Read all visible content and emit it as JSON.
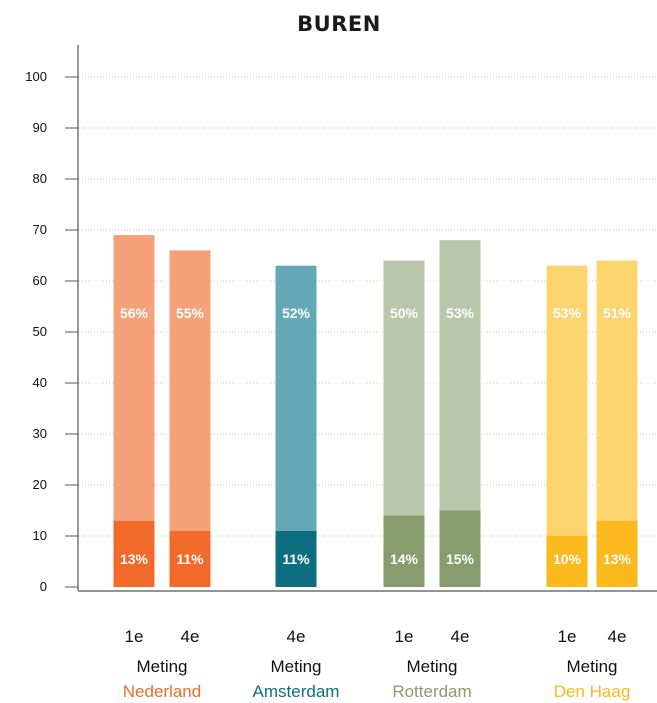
{
  "chart_data": {
    "type": "bar",
    "title": "BUREN",
    "ylim": [
      0,
      100
    ],
    "yticks": [
      0,
      10,
      20,
      30,
      40,
      50,
      60,
      70,
      80,
      90,
      100
    ],
    "grid": true,
    "group_caption": "Meting",
    "groups": [
      {
        "name": "Nederland",
        "color": "#f26a2a",
        "light_color": "#f4a17a",
        "bars": [
          {
            "measurement": "1e",
            "bottom_value": 13,
            "top_value": 56,
            "bottom_label": "13%",
            "top_label": "56%"
          },
          {
            "measurement": "4e",
            "bottom_value": 11,
            "top_value": 55,
            "bottom_label": "11%",
            "top_label": "55%"
          }
        ]
      },
      {
        "name": "Amsterdam",
        "color": "#0d6e80",
        "light_color": "#64a8b6",
        "bars": [
          {
            "measurement": "4e",
            "bottom_value": 11,
            "top_value": 52,
            "bottom_label": "11%",
            "top_label": "52%"
          }
        ]
      },
      {
        "name": "Rotterdam",
        "color": "#879d6e",
        "light_color": "#b9c6a9",
        "bars": [
          {
            "measurement": "1e",
            "bottom_value": 14,
            "top_value": 50,
            "bottom_label": "14%",
            "top_label": "50%"
          },
          {
            "measurement": "4e",
            "bottom_value": 15,
            "top_value": 53,
            "bottom_label": "15%",
            "top_label": "53%"
          }
        ]
      },
      {
        "name": "Den Haag",
        "color": "#fbb91d",
        "light_color": "#fcd56e",
        "bars": [
          {
            "measurement": "1e",
            "bottom_value": 10,
            "top_value": 53,
            "bottom_label": "10%",
            "top_label": "53%"
          },
          {
            "measurement": "4e",
            "bottom_value": 13,
            "top_value": 51,
            "bottom_label": "13%",
            "top_label": "51%"
          }
        ]
      }
    ]
  }
}
